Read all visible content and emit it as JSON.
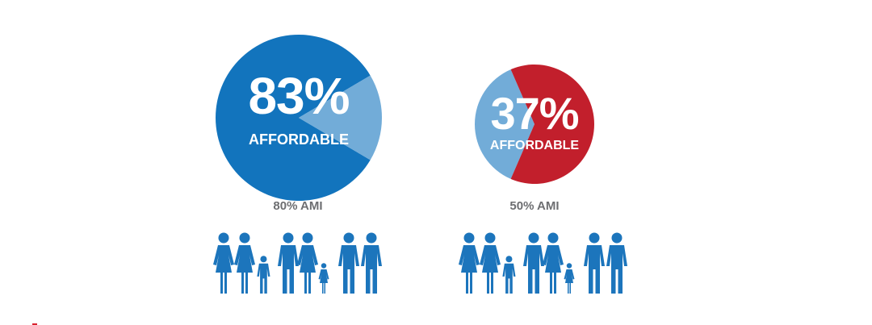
{
  "colors": {
    "affordable_primary": "#1274bd",
    "remainder_light": "#72acd8",
    "affordable_secondary": "#72acd8",
    "remainder_red": "#c21f2c",
    "people": "#1c75bc",
    "label_gray": "#6d6e71"
  },
  "chart_data": [
    {
      "type": "pie",
      "slices": [
        {
          "label": "AFFORDABLE",
          "value": 83
        },
        {
          "label": "",
          "value": 17
        }
      ],
      "center_value": "83%",
      "center_label": "AFFORDABLE",
      "caption": "80% AMI"
    },
    {
      "type": "pie",
      "slices": [
        {
          "label": "AFFORDABLE",
          "value": 37
        },
        {
          "label": "",
          "value": 63
        }
      ],
      "center_value": "37%",
      "center_label": "AFFORDABLE",
      "caption": "50% AMI"
    }
  ],
  "families": [
    {
      "icon": "family-icon",
      "people": 8
    },
    {
      "icon": "family-icon",
      "people": 8
    }
  ]
}
